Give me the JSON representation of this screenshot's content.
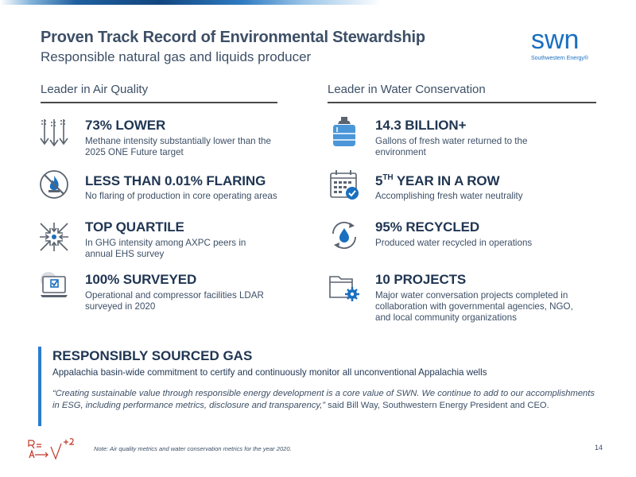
{
  "title": "Proven Track Record of Environmental Stewardship",
  "subtitle": "Responsible natural gas and liquids producer",
  "logo": {
    "word": "swn",
    "tagline": "Southwestern Energy®"
  },
  "left_column": {
    "heading": "Leader in Air Quality",
    "items": [
      {
        "icon": "methane-arrows-icon",
        "title": "73% LOWER",
        "desc": "Methane intensity substantially lower than the 2025 ONE Future target"
      },
      {
        "icon": "no-flaring-icon",
        "title": "LESS THAN 0.01% FLARING",
        "desc": "No flaring of production in core operating areas"
      },
      {
        "icon": "compress-arrows-icon",
        "title": "TOP QUARTILE",
        "desc": "In GHG intensity among AXPC peers in annual EHS survey"
      },
      {
        "icon": "laptop-check-icon",
        "title": "100% SURVEYED",
        "desc": "Operational and compressor facilities LDAR surveyed in 2020"
      }
    ]
  },
  "right_column": {
    "heading": "Leader in Water Conservation",
    "items": [
      {
        "icon": "water-jug-icon",
        "title": "14.3 BILLION+",
        "desc": "Gallons of fresh water returned to the environment"
      },
      {
        "icon": "calendar-check-icon",
        "title_num": "5",
        "title_sup": "TH",
        "title_rest": " YEAR IN A ROW",
        "desc": "Accomplishing fresh water neutrality"
      },
      {
        "icon": "recycle-drop-icon",
        "title": "95% RECYCLED",
        "desc": "Produced water recycled in operations"
      },
      {
        "icon": "folder-gear-icon",
        "title": "10 PROJECTS",
        "desc": "Major water conversation projects completed in collaboration with governmental agencies, NGO, and local community organizations"
      }
    ]
  },
  "band": {
    "title": "RESPONSIBLY SOURCED GAS",
    "subtitle": "Appalachia basin-wide commitment to certify and continuously monitor all unconventional Appalachia wells",
    "quote": "“Creating sustainable value through responsible energy development is a core value of SWN. We continue to add to our accomplishments in ESG, including performance metrics, disclosure and transparency,”",
    "attribution": " said Bill Way, Southwestern Energy President and CEO."
  },
  "footer": {
    "note": "Note: Air quality metrics  and water conservation metrics for the year 2020.",
    "page": "14"
  },
  "colors": {
    "navy": "#1f3552",
    "gray_text": "#3d4f66",
    "accent_blue": "#2b7bd0",
    "icon_blue": "#1a6fbf",
    "icon_gray": "#5a6370"
  }
}
